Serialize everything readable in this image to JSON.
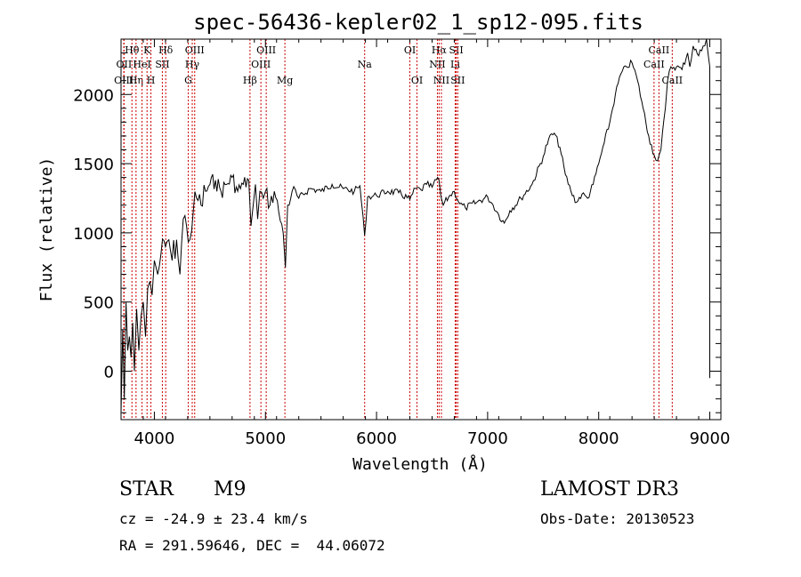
{
  "chart_data": {
    "type": "line",
    "title": "spec-56436-kepler02_1_sp12-095.fits",
    "xlabel": "Wavelength (Å)",
    "ylabel": "Flux (relative)",
    "xlim": [
      3700,
      9100
    ],
    "ylim": [
      -350,
      2400
    ],
    "x_ticks": [
      4000,
      5000,
      6000,
      7000,
      8000,
      9000
    ],
    "y_ticks": [
      0,
      500,
      1000,
      1500,
      2000
    ],
    "grid": false,
    "line_color": "#000000",
    "marker_color": "#cc0000",
    "spectrum": {
      "x": [
        3700,
        3715,
        3730,
        3745,
        3760,
        3775,
        3790,
        3805,
        3820,
        3840,
        3860,
        3880,
        3900,
        3920,
        3940,
        3960,
        3980,
        4000,
        4030,
        4060,
        4100,
        4130,
        4160,
        4200,
        4230,
        4260,
        4290,
        4320,
        4350,
        4380,
        4420,
        4460,
        4500,
        4550,
        4600,
        4650,
        4700,
        4750,
        4800,
        4850,
        4870,
        4890,
        4910,
        4930,
        4950,
        4980,
        5000,
        5040,
        5080,
        5120,
        5160,
        5180,
        5200,
        5240,
        5300,
        5400,
        5500,
        5600,
        5700,
        5800,
        5850,
        5893,
        5920,
        6000,
        6100,
        6200,
        6300,
        6350,
        6400,
        6450,
        6500,
        6550,
        6563,
        6580,
        6600,
        6650,
        6700,
        6750,
        6800,
        6900,
        7000,
        7050,
        7100,
        7150,
        7200,
        7300,
        7400,
        7500,
        7550,
        7600,
        7650,
        7700,
        7750,
        7800,
        7850,
        7900,
        7950,
        8000,
        8050,
        8100,
        8150,
        8200,
        8250,
        8300,
        8350,
        8400,
        8450,
        8500,
        8530,
        8560,
        8600,
        8620,
        8650,
        8700,
        8750,
        8800,
        8820,
        8850,
        8900,
        8940,
        8970,
        9000,
        9000,
        9000,
        9000
      ],
      "y": [
        -300,
        300,
        -200,
        500,
        150,
        250,
        100,
        350,
        0,
        450,
        150,
        400,
        500,
        250,
        600,
        650,
        550,
        800,
        700,
        850,
        900,
        950,
        800,
        950,
        700,
        1100,
        1050,
        950,
        1150,
        1250,
        1200,
        1300,
        1350,
        1380,
        1300,
        1350,
        1400,
        1300,
        1350,
        1380,
        1050,
        1200,
        1350,
        1100,
        1300,
        1250,
        1300,
        1200,
        1300,
        1150,
        1000,
        750,
        1200,
        1300,
        1250,
        1320,
        1300,
        1350,
        1320,
        1300,
        1340,
        980,
        1260,
        1270,
        1300,
        1290,
        1240,
        1320,
        1310,
        1350,
        1330,
        1400,
        1380,
        1260,
        1200,
        1260,
        1300,
        1210,
        1180,
        1220,
        1260,
        1200,
        1130,
        1070,
        1160,
        1250,
        1350,
        1550,
        1680,
        1720,
        1620,
        1420,
        1300,
        1220,
        1280,
        1250,
        1350,
        1500,
        1650,
        1800,
        2000,
        2150,
        2200,
        2230,
        2100,
        1900,
        1700,
        1560,
        1520,
        1600,
        1900,
        2100,
        2200,
        2200,
        2180,
        2300,
        2200,
        2350,
        2280,
        2350,
        2400,
        2200,
        -50,
        1200,
        500
      ],
      "note": "Black continuous flux curve traced from the figure"
    },
    "lines": [
      {
        "label": "Hθ",
        "x": 3798,
        "row": 1
      },
      {
        "label": "OII",
        "x": 3727,
        "row": 2
      },
      {
        "label": "OIII",
        "x": 3725,
        "row": 3
      },
      {
        "label": "Hη",
        "x": 3835,
        "row": 3
      },
      {
        "label": "HeI",
        "x": 3889,
        "row": 2
      },
      {
        "label": "K",
        "x": 3934,
        "row": 1
      },
      {
        "label": "H",
        "x": 3969,
        "row": 3
      },
      {
        "label": "SII",
        "x": 4072,
        "row": 2
      },
      {
        "label": "Hδ",
        "x": 4102,
        "row": 1
      },
      {
        "label": "OIII",
        "x": 4363,
        "row": 1
      },
      {
        "label": "Hγ",
        "x": 4341,
        "row": 2
      },
      {
        "label": "G",
        "x": 4305,
        "row": 3
      },
      {
        "label": "Hβ",
        "x": 4861,
        "row": 3
      },
      {
        "label": "OIII",
        "x": 5007,
        "row": 1
      },
      {
        "label": "OIII",
        "x": 4959,
        "row": 2
      },
      {
        "label": "Mg",
        "x": 5175,
        "row": 3
      },
      {
        "label": "Na",
        "x": 5893,
        "row": 2
      },
      {
        "label": "OI",
        "x": 6300,
        "row": 1
      },
      {
        "label": "OI",
        "x": 6364,
        "row": 3
      },
      {
        "label": "Hα",
        "x": 6563,
        "row": 1
      },
      {
        "label": "NII",
        "x": 6548,
        "row": 2
      },
      {
        "label": "NII",
        "x": 6584,
        "row": 3
      },
      {
        "label": "SII",
        "x": 6717,
        "row": 1
      },
      {
        "label": "Li",
        "x": 6708,
        "row": 2
      },
      {
        "label": "SII",
        "x": 6731,
        "row": 3
      },
      {
        "label": "CaII",
        "x": 8542,
        "row": 1
      },
      {
        "label": "CaII",
        "x": 8498,
        "row": 2
      },
      {
        "label": "CaII",
        "x": 8662,
        "row": 3
      }
    ]
  },
  "info": {
    "object_class": "STAR",
    "subclass": "M9",
    "survey": "LAMOST DR3",
    "redshift_text": "cz = -24.9 ± 23.4 km/s",
    "obs_date_text": "Obs-Date: 20130523",
    "coords_text": "RA = 291.59646, DEC =  44.06072"
  }
}
